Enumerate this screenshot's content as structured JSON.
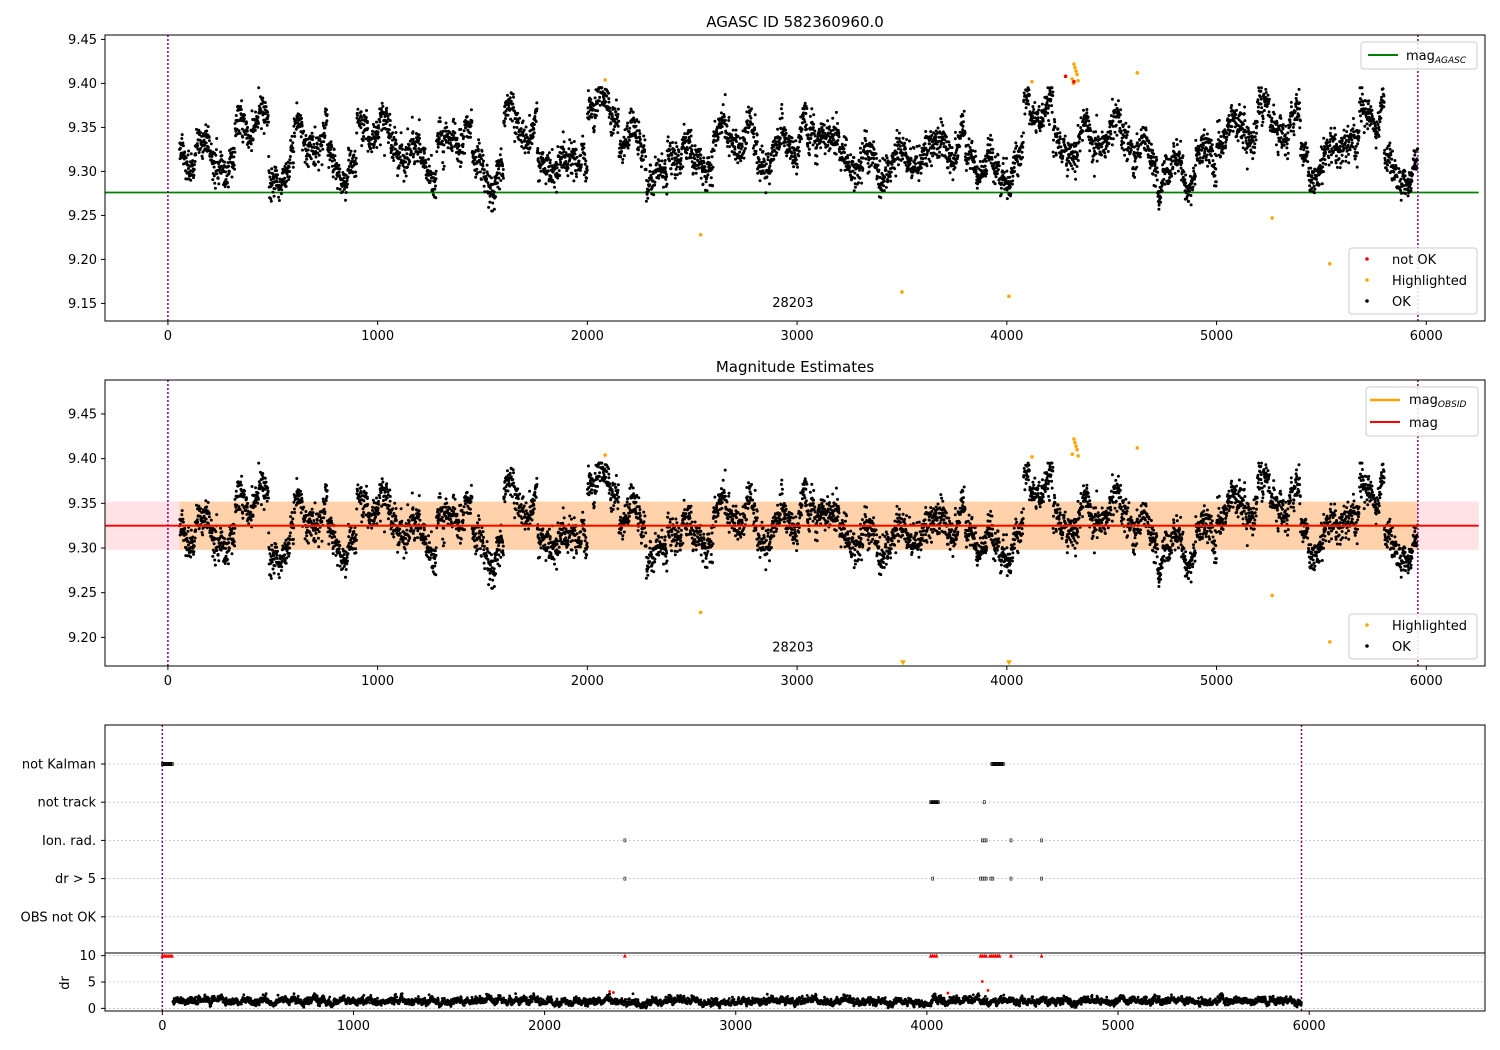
{
  "chart_data": [
    {
      "type": "scatter",
      "title": "AGASC ID 582360960.0",
      "xlim": [
        -300,
        6280
      ],
      "ylim": [
        9.13,
        9.455
      ],
      "x_ticks": [
        0,
        1000,
        2000,
        3000,
        4000,
        5000,
        6000
      ],
      "y_ticks": [
        9.15,
        9.2,
        9.25,
        9.3,
        9.35,
        9.4,
        9.45
      ],
      "hline": {
        "name": "mag_AGASC",
        "y": 9.276,
        "x_start": -300,
        "x_end": 6250,
        "color": "#008000"
      },
      "vlines": [
        {
          "x": 0,
          "color": "#800080"
        },
        {
          "x": 5960,
          "color": "#800080"
        }
      ],
      "annotation": {
        "text": "28203",
        "x": 2980,
        "y": 9.146
      },
      "legend_line": {
        "label_main": "mag",
        "label_sub": "AGASC",
        "position": "upper right"
      },
      "legend_points": {
        "position": "lower right",
        "items": [
          {
            "label": "not OK",
            "color": "#ff0000"
          },
          {
            "label": "Highlighted",
            "color": "#ffa500"
          },
          {
            "label": "OK",
            "color": "#000000"
          }
        ]
      },
      "ok_series": {
        "name": "OK",
        "color": "#000000",
        "x_start": 55,
        "x_end": 5960,
        "samples": 5200,
        "y_min": 9.255,
        "y_max": 9.395
      },
      "highlighted": {
        "name": "Highlighted",
        "color": "#ffa500",
        "points": [
          [
            2085,
            9.404
          ],
          [
            2540,
            9.228
          ],
          [
            3500,
            9.163
          ],
          [
            4010,
            9.158
          ],
          [
            4120,
            9.402
          ],
          [
            4320,
            9.422
          ],
          [
            4325,
            9.418
          ],
          [
            4330,
            9.414
          ],
          [
            4335,
            9.41
          ],
          [
            4312,
            9.405
          ],
          [
            4340,
            9.403
          ],
          [
            4318,
            9.4
          ],
          [
            4622,
            9.412
          ],
          [
            5265,
            9.247
          ],
          [
            5540,
            9.195
          ]
        ]
      },
      "not_ok": {
        "name": "not OK",
        "color": "#ff0000",
        "points": [
          [
            4280,
            9.408
          ],
          [
            4320,
            9.402
          ]
        ]
      }
    },
    {
      "type": "scatter",
      "title": "Magnitude Estimates",
      "xlim": [
        -300,
        6280
      ],
      "ylim": [
        9.168,
        9.488
      ],
      "x_ticks": [
        0,
        1000,
        2000,
        3000,
        4000,
        5000,
        6000
      ],
      "y_ticks": [
        9.2,
        9.25,
        9.3,
        9.35,
        9.4,
        9.45
      ],
      "hline": {
        "name": "mag",
        "y": 9.325,
        "x_start": -300,
        "x_end": 6250,
        "color": "#ff0000"
      },
      "band": {
        "y_low": 9.298,
        "y_high": 9.352,
        "x_start": -300,
        "x_end": 6250,
        "color": "#ffb6c1"
      },
      "obsid_band": {
        "y_low": 9.298,
        "y_high": 9.352,
        "x_start": 55,
        "x_end": 5960,
        "color": "#ffa500"
      },
      "vlines": [
        {
          "x": 0,
          "color": "#800080"
        },
        {
          "x": 5960,
          "color": "#800080"
        }
      ],
      "annotation": {
        "text": "28203",
        "x": 2980,
        "y": 9.184
      },
      "legend_lines": {
        "position": "upper right",
        "items": [
          {
            "label_main": "mag",
            "label_sub": "OBSID",
            "color": "#ffa500"
          },
          {
            "label_main": "mag",
            "label_sub": "",
            "color": "#ff0000"
          }
        ]
      },
      "legend_points": {
        "position": "lower right",
        "items": [
          {
            "label": "Highlighted",
            "color": "#ffa500"
          },
          {
            "label": "OK",
            "color": "#000000"
          }
        ]
      },
      "highlighted": {
        "name": "Highlighted",
        "color": "#ffa500",
        "points": [
          [
            2085,
            9.404
          ],
          [
            2540,
            9.228
          ],
          [
            4120,
            9.402
          ],
          [
            4320,
            9.422
          ],
          [
            4325,
            9.418
          ],
          [
            4330,
            9.414
          ],
          [
            4335,
            9.41
          ],
          [
            4312,
            9.405
          ],
          [
            4340,
            9.403
          ],
          [
            4622,
            9.412
          ],
          [
            5265,
            9.247
          ],
          [
            5540,
            9.195
          ]
        ],
        "clipped_markers": [
          [
            3505,
            9.17
          ],
          [
            4010,
            9.17
          ]
        ]
      }
    },
    {
      "type": "scatter",
      "title": "",
      "xlim": [
        -300,
        6920
      ],
      "x_ticks": [
        0,
        1000,
        2000,
        3000,
        4000,
        5000,
        6000
      ],
      "flag_rows": [
        {
          "label": "not Kalman",
          "x_ranges": [
            [
              0,
              55
            ],
            [
              4340,
              4400
            ]
          ]
        },
        {
          "label": "not track",
          "x_ranges": [
            [
              4020,
              4060
            ]
          ],
          "x_points": [
            4300
          ]
        },
        {
          "label": "Ion. rad.",
          "x_points": [
            2420,
            4290,
            4300,
            4310,
            4440,
            4600
          ]
        },
        {
          "label": "dr > 5",
          "x_points": [
            2420,
            4030,
            4280,
            4290,
            4300,
            4310,
            4335,
            4345,
            4440,
            4600
          ]
        },
        {
          "label": "OBS not OK",
          "x_points": []
        }
      ],
      "dr_axis": {
        "ylabel": "dr",
        "ylim": [
          -0.5,
          10.5
        ],
        "y_ticks": [
          0,
          5,
          10
        ]
      },
      "dr_series": {
        "name": "dr",
        "x_start": 55,
        "x_end": 5960,
        "samples": 5200,
        "mean": 1.3,
        "spread": 0.7
      },
      "dr_capped": {
        "y": 10,
        "color": "#ff0000",
        "x_points": [
          0,
          10,
          20,
          30,
          40,
          50,
          2420,
          4020,
          4030,
          4040,
          4050,
          4280,
          4290,
          4300,
          4310,
          4330,
          4340,
          4350,
          4360,
          4370,
          4380,
          4440,
          4600
        ]
      },
      "dr_outliers": [
        [
          2340,
          3.2
        ],
        [
          2360,
          3.0
        ],
        [
          4110,
          2.9
        ],
        [
          4290,
          5.1
        ],
        [
          4320,
          3.4
        ]
      ],
      "vlines": [
        {
          "x": 0,
          "color": "#800080"
        },
        {
          "x": 5960,
          "color": "#800080"
        }
      ]
    }
  ]
}
